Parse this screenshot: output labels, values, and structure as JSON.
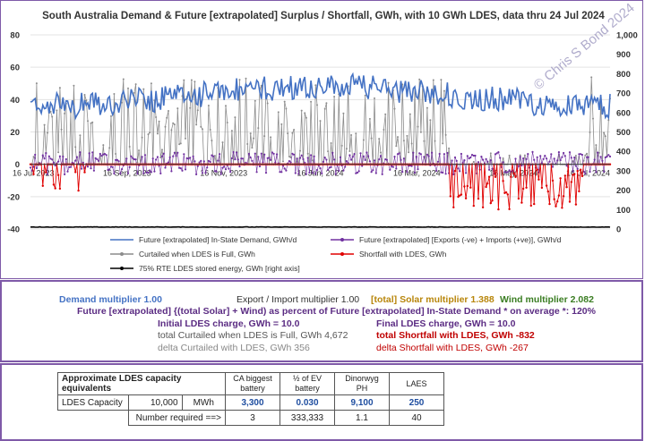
{
  "chart_data": {
    "type": "line",
    "title": "South Australia Demand & Future [extrapolated] Surplus / Shortfall, GWh, with 10 GWh LDES, data thru 24 Jul 2024",
    "watermark": "© Chris S Bond  2024",
    "x_tick_labels": [
      "16 Jul 2023",
      "16 Sep, 2023",
      "16 Nov, 2023",
      "16 Jan, 2024",
      "16 Mar, 2024",
      "16 May, 2024",
      "16 Jul, 2024"
    ],
    "y_left": {
      "ticks": [
        "80",
        "60",
        "40",
        "20",
        "0",
        "-20",
        "-40"
      ],
      "ylim": [
        -40,
        80
      ]
    },
    "y_right": {
      "ticks": [
        "1,000",
        "900",
        "800",
        "700",
        "600",
        "500",
        "400",
        "300",
        "200",
        "100",
        "0"
      ],
      "ylim": [
        0,
        1000
      ]
    },
    "n_days": 375,
    "series": [
      {
        "name": "Future [extrapolated]  In-State Demand, GWh/d",
        "color": "#4472c4",
        "axis": "left",
        "approx_mean": 44
      },
      {
        "name": "Future [extrapolated]  [Exports (-ve) + Imports (+ve)], GWh/d",
        "color": "#7030a0",
        "axis": "left",
        "approx_range": [
          -6,
          10
        ]
      },
      {
        "name": "Curtailed when LDES is Full, GWh",
        "color": "#8c8c8c",
        "axis": "left",
        "approx_range": [
          0,
          58
        ]
      },
      {
        "name": "Shortfall with LDES, GWh",
        "color": "#e00000",
        "axis": "left",
        "approx_range": [
          -30,
          0
        ]
      },
      {
        "name": "75% RTE LDES stored energy, GWh [right axis]",
        "color": "#000000",
        "axis": "right",
        "approx_value": 10
      }
    ],
    "legend_placement": "bottom"
  },
  "params": {
    "demand_multiplier": "Demand multiplier 1.00",
    "export_multiplier": "Export / Import multiplier 1.00",
    "solar_multiplier": "[total] Solar multiplier 1.388",
    "wind_multiplier": "Wind multiplier 2.082",
    "future_percent": "Future [extrapolated]  {(total Solar] + Wind) as percent of Future [extrapolated] In-State Demand * on average *: 120%",
    "initial_ldes": "Initial LDES charge, GWh = 10.0",
    "final_ldes": "Final LDES charge, GWh = 10.0",
    "total_curtailed": "total Curtailed when LDES is Full, GWh  4,672",
    "total_shortfall": "total Shortfall with LDES, GWh  -832",
    "delta_curtailed": "delta Curtailed with LDES, GWh   356",
    "delta_shortfall": "delta Shortfall with LDES, GWh   -267"
  },
  "ldes_table": {
    "title": "Approximate LDES capacity equivalents",
    "headers": [
      "CA biggest battery",
      "½ of EV battery",
      "Dinorwyg PH",
      "LAES"
    ],
    "capacity_label": "LDES Capacity",
    "capacity_value": "10,000",
    "capacity_unit": "MWh",
    "capacity_values": [
      "3,300",
      "0.030",
      "9,100",
      "250"
    ],
    "number_required_label": "Number required ==>",
    "number_required": [
      "3",
      "333,333",
      "1.1",
      "40"
    ]
  },
  "colors": {
    "frame": "#7f5aa8",
    "demand_blue": "#4472c4",
    "title_purple": "#5b2c83",
    "solar_gold": "#b8860b",
    "wind_green": "#3a7d22",
    "shortfall_red": "#c00000"
  }
}
